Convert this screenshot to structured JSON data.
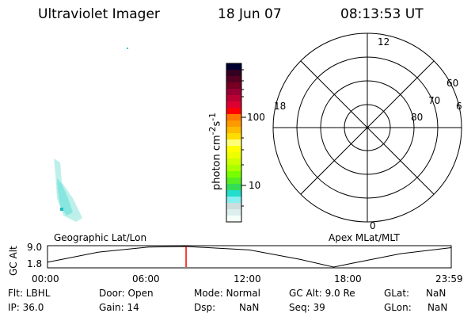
{
  "header": {
    "instrument": "Ultraviolet Imager",
    "date": "18 Jun 07",
    "time": "08:13:53 UT"
  },
  "colorbar": {
    "label": "photon cm",
    "sup1": "-2",
    "mid": "s",
    "sup2": "-1",
    "ticks": [
      "100",
      "10"
    ],
    "colors": [
      "#000033",
      "#330022",
      "#550022",
      "#770022",
      "#990033",
      "#bb0033",
      "#dd0033",
      "#ff0000",
      "#ff7700",
      "#ff9900",
      "#ffbb00",
      "#ffdd00",
      "#ffff77",
      "#ffff00",
      "#eeff00",
      "#ccff00",
      "#aaff00",
      "#77ff00",
      "#55ee22",
      "#33dd55",
      "#22ddcc",
      "#88eeee",
      "#ccdddd",
      "#ddeeee",
      "#f5fffa"
    ]
  },
  "polar": {
    "mlt_labels": {
      "top": "12",
      "bottom": "0",
      "left": "18",
      "right": "6"
    },
    "lat_labels": [
      "60",
      "70",
      "80"
    ]
  },
  "labels": {
    "geographic": "Geographic Lat/Lon",
    "apex": "Apex MLat/MLT"
  },
  "chart_data": {
    "type": "line",
    "ylabel": "GC Alt",
    "yticks": [
      "9.0",
      "1.8"
    ],
    "xticks": [
      "00:00",
      "06:00",
      "12:00",
      "18:00",
      "23:59"
    ],
    "x": [
      "00:00",
      "03:00",
      "06:00",
      "08:14",
      "12:00",
      "15:00",
      "17:00",
      "18:00",
      "21:00",
      "23:59"
    ],
    "values": [
      3.5,
      7.0,
      8.8,
      9.0,
      7.8,
      4.5,
      1.8,
      3.0,
      6.5,
      8.6
    ],
    "current_time": "08:13:53",
    "cursor_color": "#ff0000"
  },
  "status": {
    "flt": "Flt: LBHL",
    "ip": "IP: 36.0",
    "door": "Door: Open",
    "gain": "Gain: 14",
    "mode": "Mode: Normal",
    "dsp_label": "Dsp:",
    "dsp_value": "NaN",
    "gcalt": "GC Alt: 9.0 Re",
    "seq": "Seq: 39",
    "glat_label": "GLat:",
    "glat_value": "NaN",
    "glon_label": "GLon:",
    "glon_value": "NaN"
  }
}
